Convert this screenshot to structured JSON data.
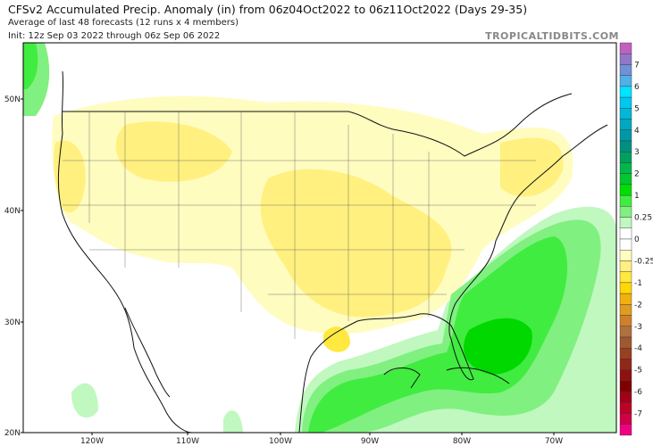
{
  "header": {
    "title": "CFSv2 Accumulated Precip. Anomaly (in) from 06z04Oct2022 to 06z11Oct2022 (Days 29-35)",
    "subtitle": "Average of last 48 forecasts (12 runs x 4 members)",
    "init": "Init: 12z Sep 03 2022 through 06z Sep 06 2022",
    "brand": "TROPICALTIDBITS.COM"
  },
  "axes": {
    "lat_labels": [
      "50N",
      "40N",
      "30N",
      "20N"
    ],
    "lon_labels": [
      "120W",
      "110W",
      "100W",
      "90W",
      "80W",
      "70W"
    ]
  },
  "colorbar": {
    "labels": [
      "7",
      "6",
      "5",
      "4",
      "3",
      "2",
      "1",
      "0.25",
      "0",
      "-0.25",
      "-1",
      "-2",
      "-3",
      "-4",
      "-5",
      "-6",
      "-7"
    ],
    "colors": [
      "#c060c0",
      "#9078c8",
      "#7090d8",
      "#50b0e8",
      "#00e4ff",
      "#00c8f0",
      "#00b8d8",
      "#00a8c0",
      "#0098a8",
      "#009080",
      "#00a060",
      "#00b848",
      "#00c830",
      "#00e000",
      "#40ec40",
      "#80f080",
      "#c0f8c0",
      "#ffffff",
      "#ffffff",
      "#fffcc0",
      "#fff080",
      "#ffe840",
      "#ffd800",
      "#f0b010",
      "#e09c20",
      "#d08028",
      "#b07040",
      "#a05830",
      "#984020",
      "#902818",
      "#901010",
      "#800000",
      "#a00018",
      "#c00028",
      "#d00048",
      "#f00080"
    ]
  },
  "colors": {
    "wet_light": "#c0f8c0",
    "wet": "#80f080",
    "wet_mid": "#40ec40",
    "wet_dark": "#00d800",
    "dry_light": "#fffcc0",
    "dry": "#fff080",
    "dry_dark": "#ffe840"
  }
}
